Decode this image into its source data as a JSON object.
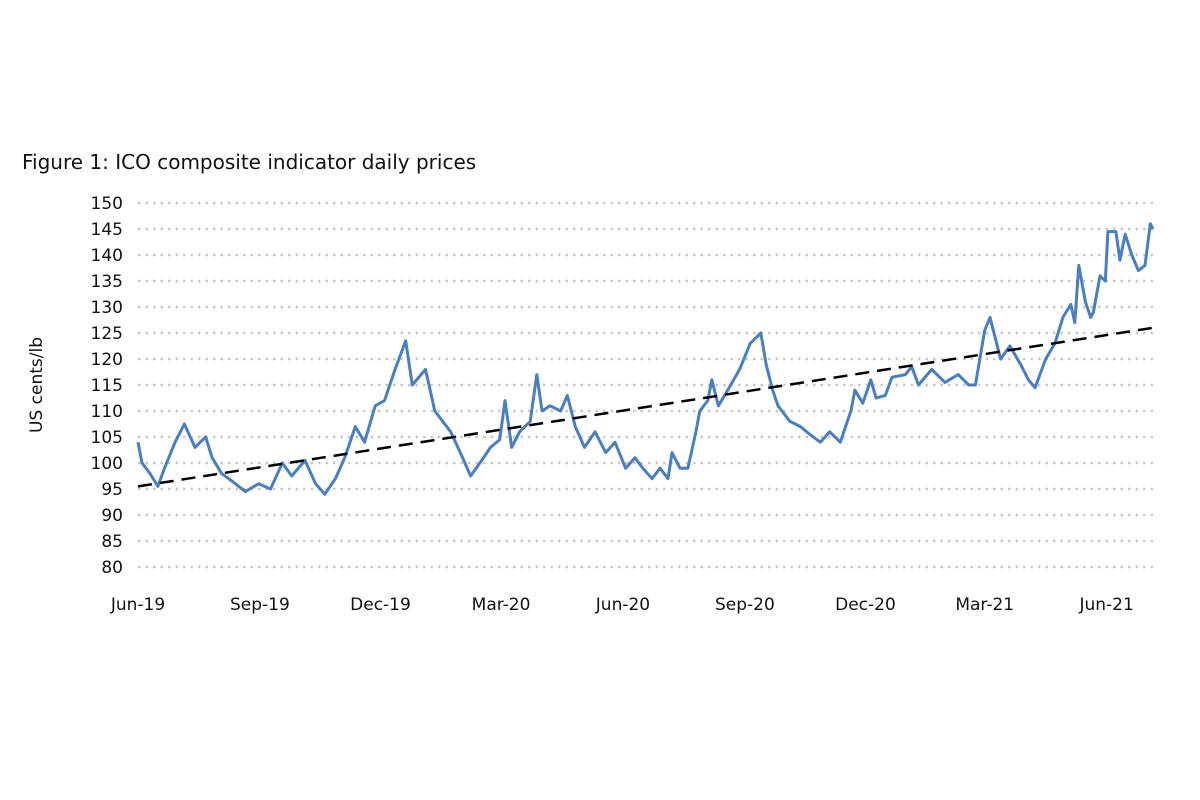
{
  "chart_data": {
    "type": "line",
    "title": "Figure 1: ICO composite indicator daily prices",
    "xlabel": "",
    "ylabel": "US cents/lb",
    "ylim": [
      80,
      150
    ],
    "yticks": [
      80,
      85,
      90,
      95,
      100,
      105,
      110,
      115,
      120,
      125,
      130,
      135,
      140,
      145,
      150
    ],
    "xticks": [
      {
        "date": "2019-06-01",
        "label": "Jun-19"
      },
      {
        "date": "2019-09-01",
        "label": "Sep-19"
      },
      {
        "date": "2019-12-01",
        "label": "Dec-19"
      },
      {
        "date": "2020-03-01",
        "label": "Mar-20"
      },
      {
        "date": "2020-06-01",
        "label": "Jun-20"
      },
      {
        "date": "2020-09-01",
        "label": "Sep-20"
      },
      {
        "date": "2020-12-01",
        "label": "Dec-20"
      },
      {
        "date": "2021-03-01",
        "label": "Mar-21"
      },
      {
        "date": "2021-06-01",
        "label": "Jun-21"
      }
    ],
    "xlim": [
      "2019-06-01",
      "2021-07-06"
    ],
    "grid": "horizontal dotted",
    "colors": {
      "series": "#4a7ebf",
      "trend": "#000000",
      "grid": "#c8c8c8"
    },
    "series": [
      {
        "style": "solid",
        "points": [
          [
            "2019-06-01",
            104
          ],
          [
            "2019-06-04",
            100
          ],
          [
            "2019-06-10",
            98
          ],
          [
            "2019-06-16",
            95.5
          ],
          [
            "2019-06-21",
            99
          ],
          [
            "2019-06-29",
            104
          ],
          [
            "2019-07-06",
            107.5
          ],
          [
            "2019-07-14",
            103
          ],
          [
            "2019-07-22",
            105
          ],
          [
            "2019-07-27",
            101
          ],
          [
            "2019-08-03",
            98
          ],
          [
            "2019-08-11",
            96.5
          ],
          [
            "2019-08-21",
            94.5
          ],
          [
            "2019-08-31",
            96
          ],
          [
            "2019-09-09",
            95
          ],
          [
            "2019-09-18",
            100
          ],
          [
            "2019-09-25",
            97.5
          ],
          [
            "2019-10-05",
            100.5
          ],
          [
            "2019-10-13",
            96
          ],
          [
            "2019-10-20",
            94
          ],
          [
            "2019-10-28",
            97
          ],
          [
            "2019-11-04",
            101
          ],
          [
            "2019-11-12",
            107
          ],
          [
            "2019-11-19",
            104
          ],
          [
            "2019-11-27",
            111
          ],
          [
            "2019-12-04",
            112
          ],
          [
            "2019-12-12",
            118
          ],
          [
            "2019-12-20",
            123.5
          ],
          [
            "2019-12-25",
            115
          ],
          [
            "2020-01-04",
            118
          ],
          [
            "2020-01-11",
            110
          ],
          [
            "2020-01-23",
            106
          ],
          [
            "2020-02-01",
            101
          ],
          [
            "2020-02-07",
            97.5
          ],
          [
            "2020-02-14",
            100
          ],
          [
            "2020-02-22",
            103
          ],
          [
            "2020-02-29",
            104.5
          ],
          [
            "2020-03-04",
            112
          ],
          [
            "2020-03-09",
            103
          ],
          [
            "2020-03-15",
            106
          ],
          [
            "2020-03-23",
            108
          ],
          [
            "2020-03-28",
            117
          ],
          [
            "2020-04-01",
            110
          ],
          [
            "2020-04-07",
            111
          ],
          [
            "2020-04-15",
            110
          ],
          [
            "2020-04-20",
            113
          ],
          [
            "2020-04-26",
            107
          ],
          [
            "2020-05-03",
            103
          ],
          [
            "2020-05-11",
            106
          ],
          [
            "2020-05-19",
            102
          ],
          [
            "2020-05-26",
            104
          ],
          [
            "2020-06-03",
            99
          ],
          [
            "2020-06-10",
            101
          ],
          [
            "2020-06-16",
            99
          ],
          [
            "2020-06-23",
            97
          ],
          [
            "2020-06-29",
            99
          ],
          [
            "2020-07-05",
            97
          ],
          [
            "2020-07-08",
            102
          ],
          [
            "2020-07-14",
            99
          ],
          [
            "2020-07-20",
            99
          ],
          [
            "2020-07-26",
            106
          ],
          [
            "2020-07-29",
            110
          ],
          [
            "2020-08-04",
            112
          ],
          [
            "2020-08-07",
            116
          ],
          [
            "2020-08-12",
            111
          ],
          [
            "2020-08-19",
            114
          ],
          [
            "2020-08-28",
            118
          ],
          [
            "2020-09-05",
            123
          ],
          [
            "2020-09-13",
            125
          ],
          [
            "2020-09-17",
            119
          ],
          [
            "2020-09-22",
            114
          ],
          [
            "2020-09-26",
            111
          ],
          [
            "2020-10-05",
            108
          ],
          [
            "2020-10-13",
            107
          ],
          [
            "2020-10-20",
            105.5
          ],
          [
            "2020-10-28",
            104
          ],
          [
            "2020-11-04",
            106
          ],
          [
            "2020-11-12",
            104
          ],
          [
            "2020-11-20",
            110
          ],
          [
            "2020-11-23",
            114
          ],
          [
            "2020-11-29",
            111.5
          ],
          [
            "2020-12-05",
            116
          ],
          [
            "2020-12-09",
            112.5
          ],
          [
            "2020-12-16",
            113
          ],
          [
            "2020-12-21",
            116.5
          ],
          [
            "2020-12-31",
            117
          ],
          [
            "2021-01-05",
            118.5
          ],
          [
            "2021-01-10",
            115
          ],
          [
            "2021-01-20",
            118
          ],
          [
            "2021-01-30",
            115.5
          ],
          [
            "2021-02-09",
            117
          ],
          [
            "2021-02-17",
            115
          ],
          [
            "2021-02-22",
            115
          ],
          [
            "2021-03-01",
            125.5
          ],
          [
            "2021-03-05",
            128
          ],
          [
            "2021-03-13",
            120
          ],
          [
            "2021-03-20",
            122.5
          ],
          [
            "2021-03-28",
            119
          ],
          [
            "2021-04-03",
            116
          ],
          [
            "2021-04-08",
            114.5
          ],
          [
            "2021-04-16",
            120
          ],
          [
            "2021-04-23",
            123
          ],
          [
            "2021-04-29",
            128
          ],
          [
            "2021-05-05",
            130.5
          ],
          [
            "2021-05-08",
            127
          ],
          [
            "2021-05-11",
            138
          ],
          [
            "2021-05-16",
            131
          ],
          [
            "2021-05-20",
            128
          ],
          [
            "2021-05-22",
            129
          ],
          [
            "2021-05-27",
            136
          ],
          [
            "2021-05-31",
            135
          ],
          [
            "2021-06-02",
            144.5
          ],
          [
            "2021-06-08",
            144.5
          ],
          [
            "2021-06-11",
            139
          ],
          [
            "2021-06-15",
            144
          ],
          [
            "2021-06-20",
            140
          ],
          [
            "2021-06-25",
            137
          ],
          [
            "2021-06-30",
            138
          ],
          [
            "2021-07-04",
            146
          ],
          [
            "2021-07-06",
            145
          ]
        ]
      },
      {
        "style": "dashed trend",
        "points": [
          [
            "2019-06-01",
            95.5
          ],
          [
            "2021-07-06",
            126
          ]
        ]
      }
    ]
  }
}
